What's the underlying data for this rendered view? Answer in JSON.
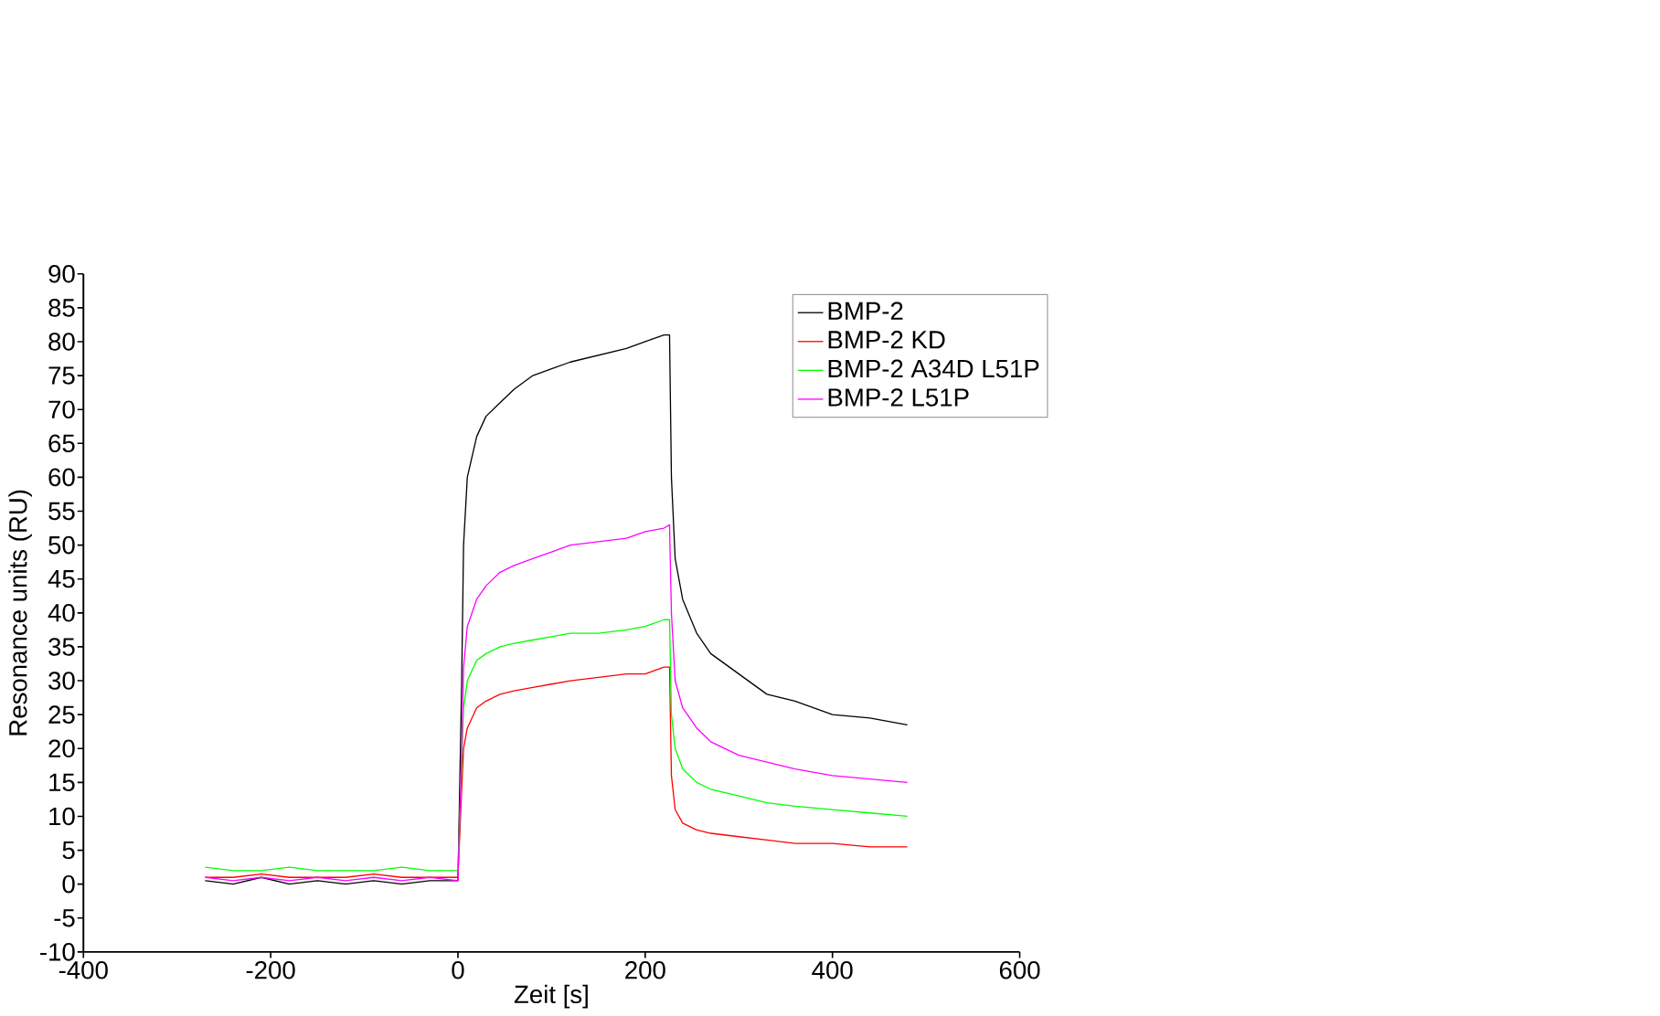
{
  "chart_data": {
    "type": "line",
    "xlabel": "Zeit [s]",
    "ylabel": "Resonance units (RU)",
    "x": [
      -270,
      -240,
      -210,
      -180,
      -150,
      -120,
      -90,
      -60,
      -30,
      0,
      4,
      6,
      10,
      20,
      30,
      45,
      60,
      80,
      100,
      120,
      150,
      180,
      200,
      220,
      226,
      228,
      232,
      240,
      255,
      270,
      300,
      330,
      360,
      400,
      440,
      480
    ],
    "series": [
      {
        "name": "BMP-2",
        "color": "#000000",
        "values": [
          0.5,
          0,
          1,
          0,
          0.5,
          0,
          0.5,
          0,
          0.5,
          0.5,
          30,
          50,
          60,
          66,
          69,
          71,
          73,
          75,
          76,
          77,
          78,
          79,
          80,
          81,
          81,
          60,
          48,
          42,
          37,
          34,
          31,
          28,
          27,
          25,
          24.5,
          23.5
        ]
      },
      {
        "name": "BMP-2 KD",
        "color": "#ff0000",
        "values": [
          1,
          1,
          1.5,
          1,
          1,
          1,
          1.5,
          1,
          1,
          1,
          14,
          20,
          23,
          26,
          27,
          28,
          28.5,
          29,
          29.5,
          30,
          30.5,
          31,
          31,
          32,
          32,
          16,
          11,
          9,
          8,
          7.5,
          7,
          6.5,
          6,
          6,
          5.5,
          5.5
        ]
      },
      {
        "name": "BMP-2 A34D L51P",
        "color": "#00ff00",
        "values": [
          2.5,
          2,
          2,
          2.5,
          2,
          2,
          2,
          2.5,
          2,
          2,
          18,
          26,
          30,
          33,
          34,
          35,
          35.5,
          36,
          36.5,
          37,
          37,
          37.5,
          38,
          39,
          39,
          25,
          20,
          17,
          15,
          14,
          13,
          12,
          11.5,
          11,
          10.5,
          10
        ]
      },
      {
        "name": "BMP-2 L51P",
        "color": "#ff00ff",
        "values": [
          1,
          0.5,
          1,
          0.5,
          1,
          0.5,
          1,
          0.5,
          1,
          0.5,
          20,
          32,
          38,
          42,
          44,
          46,
          47,
          48,
          49,
          50,
          50.5,
          51,
          52,
          52.5,
          53,
          40,
          30,
          26,
          23,
          21,
          19,
          18,
          17,
          16,
          15.5,
          15
        ]
      }
    ],
    "xlim": [
      -400,
      600
    ],
    "xticks": [
      -400,
      -200,
      0,
      200,
      400,
      600
    ],
    "ylim": [
      -10,
      90
    ],
    "yticks": [
      -10,
      -5,
      0,
      5,
      10,
      15,
      20,
      25,
      30,
      35,
      40,
      45,
      50,
      55,
      60,
      65,
      70,
      75,
      80,
      85,
      90
    ],
    "legend": "top right",
    "grid": false,
    "marker": "none",
    "line_style": "solid"
  }
}
